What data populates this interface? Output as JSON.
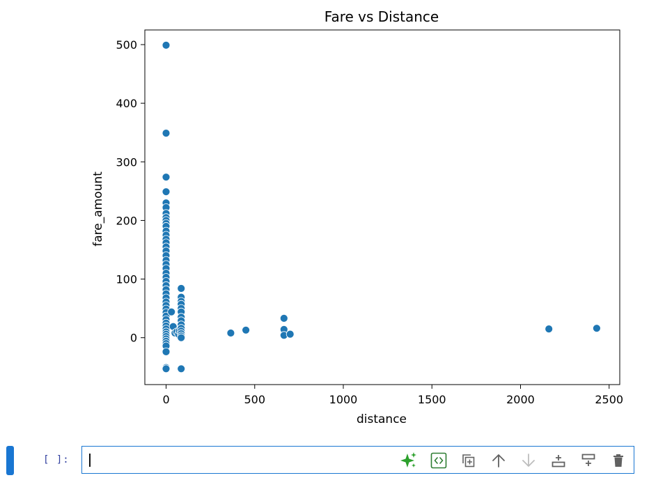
{
  "notebook": {
    "execution_prompt": "[ ]:",
    "editor_value": "",
    "toolbar": {
      "buttons": [
        {
          "name": "ai-assist-button",
          "icon": "sparkle-icon",
          "label": "Generate code",
          "color": "#2ca02c"
        },
        {
          "name": "code-toggle-button",
          "icon": "code-brackets-icon",
          "label": "Code snippet",
          "color": "#2e7d32"
        },
        {
          "name": "duplicate-cell-button",
          "icon": "duplicate-icon",
          "label": "Duplicate cell",
          "color": "#616161"
        },
        {
          "name": "move-up-button",
          "icon": "arrow-up-icon",
          "label": "Move cell up",
          "color": "#616161"
        },
        {
          "name": "move-down-button",
          "icon": "arrow-down-icon",
          "label": "Move cell down",
          "color": "#bdbdbd"
        },
        {
          "name": "insert-above-button",
          "icon": "insert-above-icon",
          "label": "Insert cell above",
          "color": "#616161"
        },
        {
          "name": "insert-below-button",
          "icon": "insert-below-icon",
          "label": "Insert cell below",
          "color": "#616161"
        },
        {
          "name": "delete-cell-button",
          "icon": "trash-icon",
          "label": "Delete cell",
          "color": "#616161"
        }
      ]
    }
  },
  "colors": {
    "accent": "#1976d2",
    "prompt": "#303f9f",
    "marker": "#1f77b4",
    "axis": "#000000"
  },
  "chart_data": {
    "type": "scatter",
    "title": "Fare vs Distance",
    "xlabel": "distance",
    "ylabel": "fare_amount",
    "xlim": [
      -120,
      2560
    ],
    "ylim": [
      -80,
      525
    ],
    "xticks": [
      0,
      500,
      1000,
      1500,
      2000,
      2500
    ],
    "yticks": [
      0,
      100,
      200,
      300,
      400,
      500
    ],
    "grid": false,
    "legend": "none",
    "series": [
      {
        "points": [
          [
            0,
            499
          ],
          [
            0,
            349
          ],
          [
            0,
            274
          ],
          [
            0,
            249
          ],
          [
            0,
            230
          ],
          [
            0,
            222
          ],
          [
            0,
            212
          ],
          [
            0,
            205
          ],
          [
            0,
            200
          ],
          [
            0,
            195
          ],
          [
            0,
            190
          ],
          [
            0,
            182
          ],
          [
            0,
            175
          ],
          [
            0,
            168
          ],
          [
            0,
            162
          ],
          [
            0,
            155
          ],
          [
            0,
            148
          ],
          [
            0,
            140
          ],
          [
            0,
            132
          ],
          [
            0,
            125
          ],
          [
            0,
            118
          ],
          [
            0,
            110
          ],
          [
            0,
            103
          ],
          [
            0,
            96
          ],
          [
            0,
            89
          ],
          [
            0,
            82
          ],
          [
            0,
            75
          ],
          [
            0,
            68
          ],
          [
            0,
            61
          ],
          [
            0,
            55
          ],
          [
            0,
            49
          ],
          [
            0,
            43
          ],
          [
            0,
            37
          ],
          [
            0,
            31
          ],
          [
            0,
            25
          ],
          [
            0,
            20
          ],
          [
            0,
            15
          ],
          [
            0,
            10
          ],
          [
            0,
            6
          ],
          [
            0,
            2
          ],
          [
            0,
            -2
          ],
          [
            0,
            -6
          ],
          [
            0,
            -10
          ],
          [
            0,
            -14
          ],
          [
            0,
            -24
          ],
          [
            0,
            -51
          ],
          [
            0,
            -53
          ],
          [
            30,
            44
          ],
          [
            40,
            19
          ],
          [
            50,
            8
          ],
          [
            60,
            10
          ],
          [
            70,
            6
          ],
          [
            75,
            12
          ],
          [
            85,
            84
          ],
          [
            85,
            69
          ],
          [
            85,
            62
          ],
          [
            85,
            57
          ],
          [
            85,
            50
          ],
          [
            85,
            44
          ],
          [
            85,
            35
          ],
          [
            85,
            29
          ],
          [
            85,
            22
          ],
          [
            85,
            16
          ],
          [
            85,
            11
          ],
          [
            85,
            7
          ],
          [
            85,
            3
          ],
          [
            85,
            0
          ],
          [
            85,
            -53
          ],
          [
            365,
            8
          ],
          [
            450,
            13
          ],
          [
            665,
            33
          ],
          [
            665,
            14
          ],
          [
            665,
            4
          ],
          [
            700,
            6
          ],
          [
            2160,
            15
          ],
          [
            2430,
            16
          ]
        ]
      }
    ]
  }
}
